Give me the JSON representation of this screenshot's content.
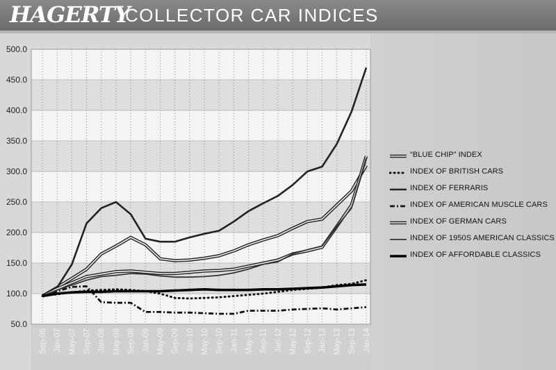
{
  "header": {
    "brand": "HAGERTY",
    "title": "COLLECTOR CAR INDICES"
  },
  "chart_data": {
    "type": "line",
    "title": "COLLECTOR CAR INDICES",
    "x": [
      "Sep-06",
      "Jan-07",
      "May-07",
      "Sep-07",
      "Jan-08",
      "May-08",
      "Sep-08",
      "Jan-09",
      "May-09",
      "Sep-09",
      "Jan-10",
      "May-10",
      "Sep-10",
      "Jan-11",
      "May-11",
      "Sep-11",
      "Jan-12",
      "May-12",
      "Sep-12",
      "Jan-13",
      "May-13",
      "Sep-13",
      "Jan-14"
    ],
    "ylim": [
      50,
      500
    ],
    "y_ticks": [
      "50.0",
      "100.0",
      "150.0",
      "200.0",
      "250.0",
      "300.0",
      "350.0",
      "400.0",
      "450.0",
      "500.0"
    ],
    "grid": true,
    "legend_position": "right",
    "series": [
      {
        "name": "“BLUE CHIP” INDEX",
        "style": "double",
        "values": [
          96,
          110,
          125,
          140,
          165,
          178,
          192,
          180,
          157,
          154,
          155,
          158,
          162,
          170,
          180,
          188,
          195,
          207,
          218,
          222,
          245,
          268,
          310
        ]
      },
      {
        "name": "INDEX OF BRITISH CARS",
        "style": "dotted",
        "values": [
          96,
          99,
          102,
          105,
          106,
          107,
          106,
          104,
          100,
          93,
          92,
          93,
          94,
          96,
          98,
          100,
          103,
          106,
          108,
          110,
          114,
          116,
          122
        ]
      },
      {
        "name": "INDEX OF FERRARIS",
        "style": "solid-thick",
        "values": [
          96,
          110,
          148,
          215,
          240,
          250,
          230,
          190,
          185,
          185,
          192,
          198,
          203,
          218,
          235,
          248,
          260,
          278,
          300,
          308,
          345,
          398,
          470
        ]
      },
      {
        "name": "INDEX OF AMERICAN MUSCLE CARS",
        "style": "dash-dot",
        "values": [
          96,
          104,
          111,
          112,
          86,
          85,
          85,
          70,
          70,
          69,
          69,
          68,
          67,
          67,
          72,
          72,
          72,
          74,
          75,
          76,
          74,
          76,
          78
        ]
      },
      {
        "name": "INDEX OF GERMAN CARS",
        "style": "double",
        "values": [
          96,
          108,
          118,
          128,
          132,
          136,
          137,
          135,
          133,
          133,
          135,
          137,
          138,
          140,
          145,
          150,
          155,
          165,
          170,
          176,
          210,
          245,
          325
        ]
      },
      {
        "name": "INDEX OF 1950S AMERICAN CLASSICS",
        "style": "solid-thin",
        "values": [
          96,
          106,
          114,
          122,
          128,
          130,
          133,
          132,
          129,
          127,
          127,
          128,
          130,
          134,
          140,
          148,
          152,
          165,
          172,
          178,
          210,
          240,
          322
        ]
      },
      {
        "name": "INDEX OF AFFORDABLE CLASSICS",
        "style": "solid-bold",
        "values": [
          96,
          100,
          102,
          103,
          103,
          104,
          104,
          104,
          104,
          105,
          106,
          107,
          106,
          106,
          106,
          107,
          107,
          108,
          109,
          110,
          112,
          114,
          115
        ]
      }
    ]
  }
}
